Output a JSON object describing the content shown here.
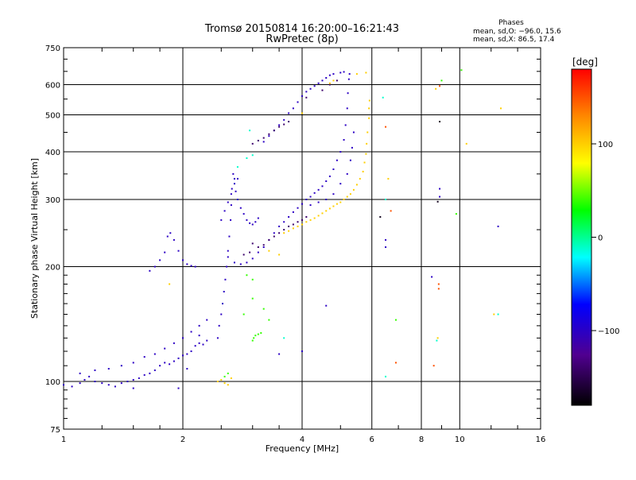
{
  "chart_data": {
    "type": "scatter",
    "title": "Tromsø 20150814 16:20:00–16:21:43",
    "subtitle": "RwPretec (8p)",
    "xlabel": "Frequency [MHz]",
    "ylabel": "Stationary phase Virtual Height [km]",
    "x_scale": "log",
    "y_scale": "log",
    "xlim": [
      1,
      16
    ],
    "ylim": [
      75,
      750
    ],
    "x_ticks": [
      1,
      2,
      4,
      6,
      8,
      10,
      16
    ],
    "x_tick_labels": [
      "1",
      "2",
      "4",
      "6",
      "8",
      "10",
      "16"
    ],
    "y_ticks": [
      75,
      100,
      200,
      300,
      400,
      500,
      600,
      750
    ],
    "y_tick_labels": [
      "75",
      "100",
      "200",
      "300",
      "400",
      "500",
      "600",
      "750"
    ],
    "grid": true,
    "phase_info": {
      "heading": "Phases",
      "o_line": "mean, sd,O: −96.0, 15.6",
      "x_line": "mean, sd,X:  86.5, 17.4"
    },
    "colorbar": {
      "label": "[deg]",
      "range": [
        -180,
        180
      ],
      "ticks": [
        100,
        0,
        -100
      ],
      "tick_labels": [
        "100",
        "0",
        "−100"
      ],
      "colors": [
        "#ff0000",
        "#ff8800",
        "#ffff00",
        "#00ff00",
        "#00ffff",
        "#0000ff",
        "#500090",
        "#000000"
      ]
    },
    "series": [
      {
        "phase": -100,
        "points": [
          [
            1.0,
            98
          ],
          [
            1.05,
            97
          ],
          [
            1.1,
            99
          ],
          [
            1.13,
            101
          ],
          [
            1.16,
            103
          ],
          [
            1.2,
            100
          ],
          [
            1.25,
            99
          ],
          [
            1.3,
            98
          ],
          [
            1.35,
            97
          ],
          [
            1.4,
            99
          ],
          [
            1.45,
            100
          ],
          [
            1.5,
            101
          ],
          [
            1.55,
            102
          ],
          [
            1.6,
            104
          ],
          [
            1.65,
            105
          ],
          [
            1.7,
            107
          ],
          [
            1.75,
            110
          ],
          [
            1.8,
            112
          ],
          [
            1.85,
            111
          ],
          [
            1.9,
            113
          ],
          [
            1.95,
            115
          ],
          [
            2.0,
            117
          ],
          [
            2.05,
            118
          ],
          [
            2.1,
            120
          ],
          [
            2.15,
            124
          ],
          [
            2.2,
            126
          ],
          [
            2.25,
            125
          ],
          [
            2.3,
            128
          ],
          [
            1.1,
            105
          ],
          [
            1.2,
            107
          ],
          [
            1.3,
            108
          ],
          [
            1.4,
            110
          ],
          [
            1.5,
            112
          ],
          [
            1.6,
            116
          ],
          [
            1.7,
            118
          ],
          [
            1.8,
            122
          ],
          [
            1.9,
            126
          ],
          [
            2.0,
            130
          ],
          [
            2.1,
            135
          ],
          [
            2.2,
            140
          ],
          [
            2.3,
            145
          ],
          [
            1.65,
            195
          ],
          [
            1.7,
            200
          ],
          [
            1.75,
            208
          ],
          [
            1.8,
            218
          ],
          [
            1.83,
            240
          ],
          [
            1.86,
            245
          ],
          [
            1.9,
            235
          ],
          [
            1.95,
            220
          ],
          [
            2.0,
            208
          ],
          [
            2.05,
            203
          ],
          [
            2.1,
            201
          ],
          [
            2.15,
            200
          ],
          [
            2.45,
            130
          ],
          [
            2.47,
            140
          ],
          [
            2.5,
            150
          ],
          [
            2.52,
            160
          ],
          [
            2.54,
            172
          ],
          [
            2.56,
            185
          ],
          [
            2.58,
            200
          ],
          [
            2.6,
            220
          ],
          [
            2.62,
            240
          ],
          [
            2.64,
            265
          ],
          [
            2.65,
            290
          ],
          [
            2.66,
            320
          ],
          [
            2.68,
            350
          ],
          [
            2.7,
            340
          ],
          [
            2.72,
            315
          ],
          [
            2.75,
            300
          ],
          [
            2.8,
            285
          ],
          [
            2.85,
            275
          ],
          [
            2.9,
            265
          ],
          [
            2.95,
            260
          ],
          [
            3.0,
            258
          ],
          [
            3.05,
            262
          ],
          [
            3.1,
            268
          ],
          [
            2.6,
            212
          ],
          [
            2.7,
            205
          ],
          [
            2.8,
            203
          ],
          [
            2.9,
            205
          ],
          [
            3.0,
            210
          ],
          [
            3.1,
            218
          ],
          [
            3.2,
            225
          ],
          [
            3.3,
            235
          ],
          [
            3.4,
            245
          ],
          [
            3.5,
            255
          ],
          [
            3.6,
            262
          ],
          [
            3.7,
            270
          ],
          [
            3.8,
            278
          ],
          [
            3.9,
            285
          ],
          [
            4.0,
            292
          ],
          [
            4.1,
            300
          ],
          [
            4.2,
            305
          ],
          [
            4.3,
            312
          ],
          [
            4.4,
            318
          ],
          [
            4.5,
            325
          ],
          [
            4.6,
            335
          ],
          [
            4.7,
            345
          ],
          [
            4.8,
            360
          ],
          [
            4.9,
            380
          ],
          [
            5.0,
            400
          ],
          [
            5.1,
            430
          ],
          [
            5.15,
            470
          ],
          [
            5.2,
            520
          ],
          [
            5.22,
            570
          ],
          [
            5.25,
            620
          ],
          [
            5.27,
            640
          ],
          [
            3.2,
            425
          ],
          [
            3.3,
            440
          ],
          [
            3.4,
            455
          ],
          [
            3.5,
            470
          ],
          [
            3.6,
            485
          ],
          [
            3.7,
            505
          ],
          [
            3.8,
            520
          ],
          [
            3.9,
            540
          ],
          [
            4.0,
            560
          ],
          [
            4.1,
            575
          ],
          [
            4.2,
            585
          ],
          [
            4.3,
            595
          ],
          [
            4.4,
            605
          ],
          [
            4.5,
            615
          ],
          [
            4.6,
            625
          ],
          [
            4.7,
            635
          ],
          [
            4.8,
            640
          ],
          [
            5.0,
            645
          ],
          [
            5.1,
            648
          ],
          [
            2.5,
            265
          ],
          [
            2.55,
            280
          ],
          [
            2.6,
            295
          ],
          [
            2.65,
            310
          ],
          [
            2.7,
            330
          ],
          [
            2.75,
            340
          ],
          [
            4.2,
            290
          ],
          [
            4.4,
            295
          ],
          [
            4.6,
            300
          ],
          [
            4.8,
            310
          ],
          [
            5.0,
            330
          ],
          [
            5.2,
            350
          ],
          [
            5.3,
            380
          ],
          [
            5.35,
            410
          ],
          [
            5.4,
            450
          ],
          [
            6.5,
            235
          ],
          [
            6.5,
            225
          ],
          [
            8.5,
            188
          ],
          [
            8.9,
            305
          ],
          [
            8.9,
            320
          ],
          [
            12.5,
            255
          ],
          [
            4.6,
            158
          ],
          [
            4.0,
            120
          ],
          [
            3.5,
            118
          ],
          [
            1.5,
            96
          ],
          [
            1.95,
            96
          ],
          [
            2.05,
            108
          ],
          [
            2.2,
            132
          ]
        ]
      },
      {
        "phase": -140,
        "points": [
          [
            3.0,
            230
          ],
          [
            3.1,
            225
          ],
          [
            3.2,
            228
          ],
          [
            3.3,
            235
          ],
          [
            3.4,
            240
          ],
          [
            3.5,
            245
          ],
          [
            3.6,
            250
          ],
          [
            3.7,
            255
          ],
          [
            3.8,
            258
          ],
          [
            3.9,
            262
          ],
          [
            4.0,
            265
          ],
          [
            4.1,
            270
          ],
          [
            3.0,
            420
          ],
          [
            3.1,
            428
          ],
          [
            3.2,
            435
          ],
          [
            3.3,
            445
          ],
          [
            3.4,
            455
          ],
          [
            3.5,
            465
          ],
          [
            3.6,
            472
          ],
          [
            3.7,
            480
          ],
          [
            2.85,
            215
          ],
          [
            2.95,
            218
          ],
          [
            4.5,
            580
          ],
          [
            4.7,
            600
          ],
          [
            4.9,
            615
          ],
          [
            4.1,
            555
          ]
        ]
      },
      {
        "phase": 100,
        "points": [
          [
            3.6,
            245
          ],
          [
            3.7,
            248
          ],
          [
            3.8,
            252
          ],
          [
            3.9,
            255
          ],
          [
            4.0,
            258
          ],
          [
            4.1,
            262
          ],
          [
            4.2,
            265
          ],
          [
            4.3,
            268
          ],
          [
            4.4,
            272
          ],
          [
            4.5,
            276
          ],
          [
            4.6,
            280
          ],
          [
            4.7,
            284
          ],
          [
            4.8,
            288
          ],
          [
            4.9,
            292
          ],
          [
            5.0,
            295
          ],
          [
            5.1,
            300
          ],
          [
            5.2,
            305
          ],
          [
            5.3,
            310
          ],
          [
            5.4,
            318
          ],
          [
            5.5,
            328
          ],
          [
            5.6,
            340
          ],
          [
            5.7,
            355
          ],
          [
            5.75,
            375
          ],
          [
            5.8,
            395
          ],
          [
            5.82,
            420
          ],
          [
            5.85,
            450
          ],
          [
            5.9,
            490
          ],
          [
            5.9,
            520
          ],
          [
            5.92,
            545
          ],
          [
            2.45,
            100
          ],
          [
            2.5,
            101
          ],
          [
            2.55,
            99
          ],
          [
            2.6,
            98
          ],
          [
            2.65,
            102
          ],
          [
            4.7,
            605
          ],
          [
            4.8,
            615
          ],
          [
            5.5,
            640
          ],
          [
            5.8,
            645
          ],
          [
            4.0,
            505
          ],
          [
            3.3,
            220
          ],
          [
            3.5,
            215
          ],
          [
            1.85,
            180
          ],
          [
            8.7,
            585
          ],
          [
            12.7,
            520
          ],
          [
            10.4,
            420
          ],
          [
            6.6,
            340
          ],
          [
            8.8,
            130
          ],
          [
            12.2,
            150
          ]
        ]
      },
      {
        "phase": 40,
        "points": [
          [
            3.0,
            128
          ],
          [
            3.02,
            130
          ],
          [
            3.05,
            132
          ],
          [
            3.1,
            133
          ],
          [
            3.15,
            134
          ],
          [
            2.55,
            103
          ],
          [
            2.6,
            105
          ],
          [
            2.85,
            150
          ],
          [
            3.0,
            165
          ],
          [
            3.2,
            155
          ],
          [
            3.3,
            145
          ],
          [
            6.9,
            145
          ],
          [
            10.1,
            655
          ],
          [
            9.8,
            275
          ],
          [
            9.0,
            615
          ],
          [
            3.0,
            185
          ],
          [
            2.9,
            190
          ]
        ]
      },
      {
        "phase": -10,
        "points": [
          [
            2.95,
            455
          ],
          [
            2.9,
            385
          ],
          [
            2.75,
            365
          ],
          [
            3.0,
            392
          ],
          [
            6.4,
            555
          ],
          [
            6.5,
            300
          ],
          [
            6.5,
            103
          ],
          [
            8.75,
            128
          ],
          [
            12.5,
            150
          ],
          [
            3.6,
            130
          ]
        ]
      },
      {
        "phase": 150,
        "points": [
          [
            6.5,
            465
          ],
          [
            6.7,
            280
          ],
          [
            6.9,
            112
          ],
          [
            8.85,
            175
          ],
          [
            8.85,
            180
          ],
          [
            8.9,
            595
          ],
          [
            8.6,
            110
          ]
        ]
      },
      {
        "phase": -170,
        "points": [
          [
            8.9,
            480
          ],
          [
            6.3,
            270
          ],
          [
            8.8,
            296
          ]
        ]
      }
    ]
  }
}
